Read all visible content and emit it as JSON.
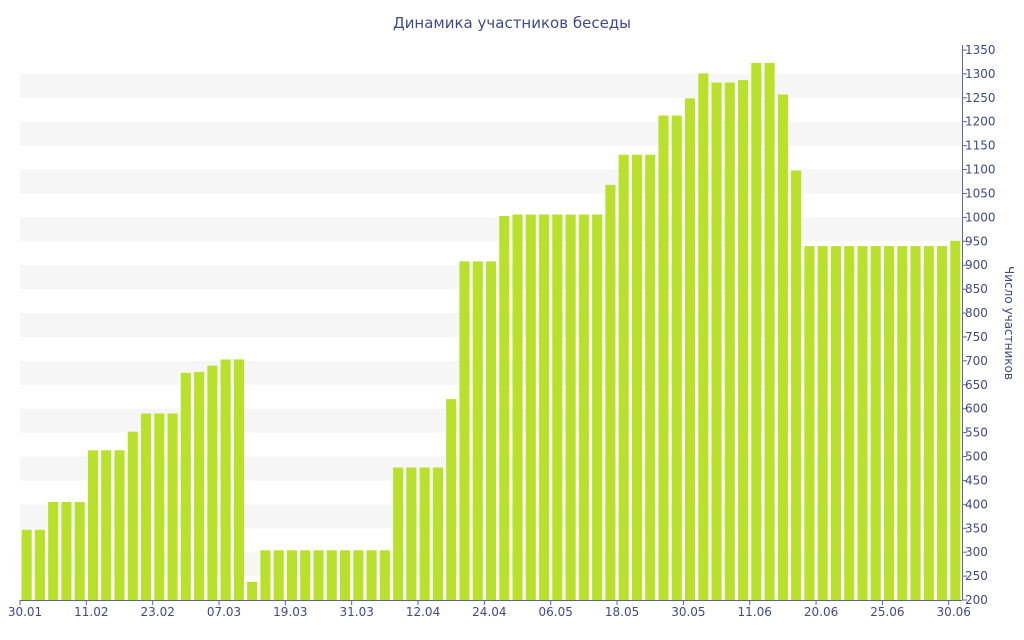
{
  "chart_data": {
    "type": "bar",
    "title": "Динамика участников беседы",
    "xlabel": "",
    "ylabel": "Число участников",
    "ylim": [
      200,
      1350
    ],
    "y_axis_side": "right",
    "y_ticks": [
      200,
      250,
      300,
      350,
      400,
      450,
      500,
      550,
      600,
      650,
      700,
      750,
      800,
      850,
      900,
      950,
      1000,
      1050,
      1100,
      1150,
      1200,
      1250,
      1300,
      1350
    ],
    "x_tick_labels": [
      {
        "label": "30.01",
        "index": 0
      },
      {
        "label": "11.02",
        "index": 5
      },
      {
        "label": "23.02",
        "index": 10
      },
      {
        "label": "07.03",
        "index": 15
      },
      {
        "label": "19.03",
        "index": 20
      },
      {
        "label": "31.03",
        "index": 25
      },
      {
        "label": "12.04",
        "index": 30
      },
      {
        "label": "24.04",
        "index": 35
      },
      {
        "label": "06.05",
        "index": 40
      },
      {
        "label": "18.05",
        "index": 45
      },
      {
        "label": "30.05",
        "index": 50
      },
      {
        "label": "11.06",
        "index": 55
      },
      {
        "label": "20.06",
        "index": 60
      },
      {
        "label": "25.06",
        "index": 65
      },
      {
        "label": "30.06",
        "index": 70
      }
    ],
    "grid": "alternating horizontal bands",
    "legend": "none",
    "colors": {
      "bar": "#b9e02b",
      "band": "#f6f6f6",
      "text": "#3e4a8c",
      "axis": "#5a6698"
    },
    "values": [
      347,
      347,
      405,
      405,
      405,
      513,
      513,
      513,
      552,
      590,
      590,
      590,
      675,
      677,
      690,
      703,
      703,
      238,
      304,
      304,
      304,
      304,
      304,
      304,
      304,
      304,
      304,
      304,
      477,
      477,
      477,
      477,
      620,
      908,
      908,
      908,
      1003,
      1006,
      1006,
      1006,
      1006,
      1006,
      1006,
      1006,
      1068,
      1131,
      1131,
      1131,
      1213,
      1213,
      1249,
      1301,
      1282,
      1282,
      1287,
      1323,
      1323,
      1257,
      1098,
      940,
      940,
      940,
      940,
      940,
      940,
      940,
      940,
      940,
      940,
      940,
      951
    ]
  }
}
